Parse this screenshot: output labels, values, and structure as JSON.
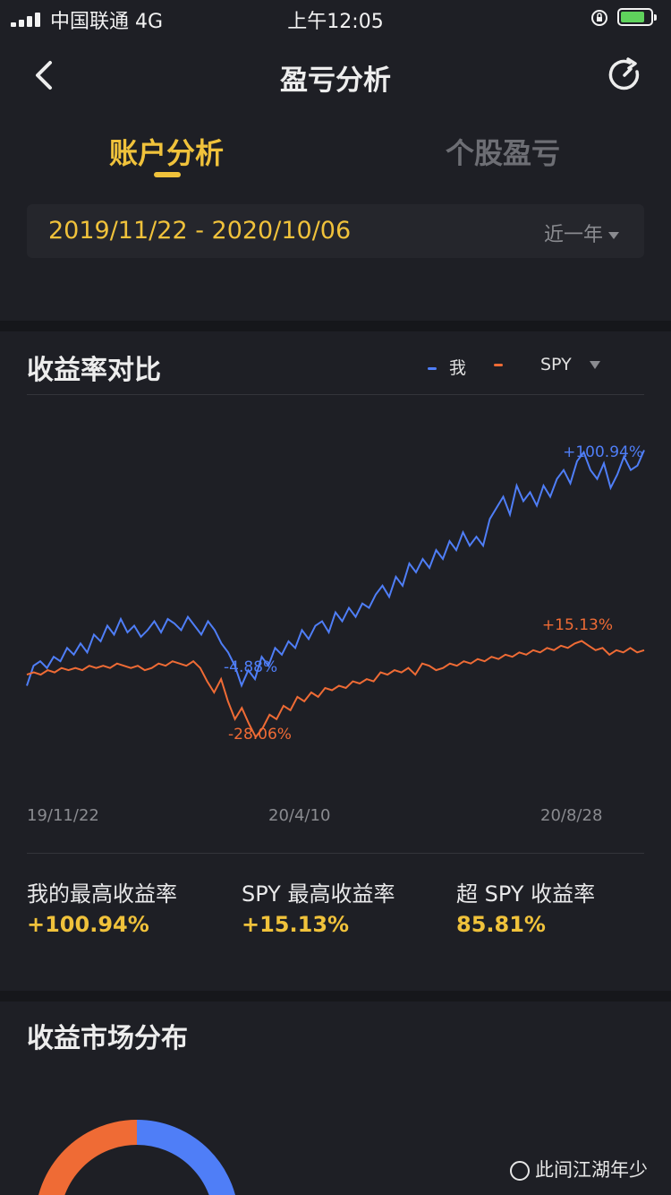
{
  "status_bar": {
    "carrier": "中国联通  4G",
    "time": "上午12:05"
  },
  "nav": {
    "title": "盈亏分析",
    "back_icon": "chevron-left-icon",
    "refresh_icon": "refresh-icon"
  },
  "tabs": [
    {
      "label": "账户分析",
      "active": true
    },
    {
      "label": "个股盈亏",
      "active": false
    }
  ],
  "date_range": {
    "value": "2019/11/22 - 2020/10/06",
    "period": "近一年"
  },
  "returns_section": {
    "title": "收益率对比",
    "legend": [
      {
        "label": "我",
        "color": "#4f7ef7"
      },
      {
        "label": "SPY",
        "color": "#ef6b35"
      }
    ]
  },
  "chart_data": {
    "type": "line",
    "x_ticks": [
      "19/11/22",
      "20/4/10",
      "20/8/28"
    ],
    "series": [
      {
        "name": "我",
        "color": "#4f7ef7",
        "values": [
          -5,
          4,
          6,
          3,
          8,
          6,
          12,
          9,
          14,
          10,
          18,
          15,
          22,
          18,
          25,
          19,
          22,
          17,
          20,
          24,
          19,
          25,
          23,
          20,
          26,
          22,
          18,
          24,
          20,
          14,
          10,
          4,
          -4.88,
          2,
          -2,
          8,
          4,
          12,
          9,
          15,
          12,
          20,
          16,
          22,
          24,
          19,
          28,
          24,
          30,
          26,
          32,
          30,
          36,
          40,
          35,
          44,
          40,
          50,
          46,
          52,
          48,
          56,
          52,
          60,
          56,
          64,
          58,
          62,
          58,
          70,
          75,
          80,
          72,
          85,
          78,
          82,
          76,
          85,
          80,
          88,
          92,
          86,
          96,
          100,
          92,
          88,
          95,
          84,
          90,
          98,
          92,
          94,
          100.94
        ]
      },
      {
        "name": "SPY",
        "color": "#ef6b35",
        "values": [
          0,
          1,
          0,
          2,
          1,
          3,
          2,
          3,
          2,
          4,
          3,
          4,
          3,
          5,
          4,
          3,
          4,
          2,
          3,
          5,
          4,
          6,
          5,
          4,
          6,
          3,
          -3,
          -8,
          -2,
          -12,
          -20,
          -15,
          -22,
          -28.06,
          -24,
          -18,
          -20,
          -14,
          -16,
          -10,
          -12,
          -8,
          -10,
          -6,
          -7,
          -5,
          -6,
          -3,
          -4,
          -2,
          -3,
          1,
          0,
          2,
          1,
          3,
          0,
          5,
          4,
          2,
          3,
          5,
          4,
          6,
          5,
          7,
          6,
          8,
          7,
          9,
          8,
          10,
          9,
          11,
          10,
          12,
          11,
          13,
          12,
          14,
          15.13,
          13,
          11,
          12,
          9,
          11,
          10,
          12,
          10,
          11
        ]
      }
    ],
    "annotations": [
      {
        "label": "+100.94%",
        "series": "我"
      },
      {
        "label": "+15.13%",
        "series": "SPY"
      },
      {
        "label": "-4.88%",
        "series": "我"
      },
      {
        "label": "-28.06%",
        "series": "SPY"
      }
    ]
  },
  "stats": [
    {
      "label": "我的最高收益率",
      "value": "+100.94%"
    },
    {
      "label": "SPY 最高收益率",
      "value": "+15.13%"
    },
    {
      "label": "超 SPY 收益率",
      "value": "85.81%"
    }
  ],
  "market_section": {
    "title": "收益市场分布"
  },
  "watermark": "此间江湖年少"
}
